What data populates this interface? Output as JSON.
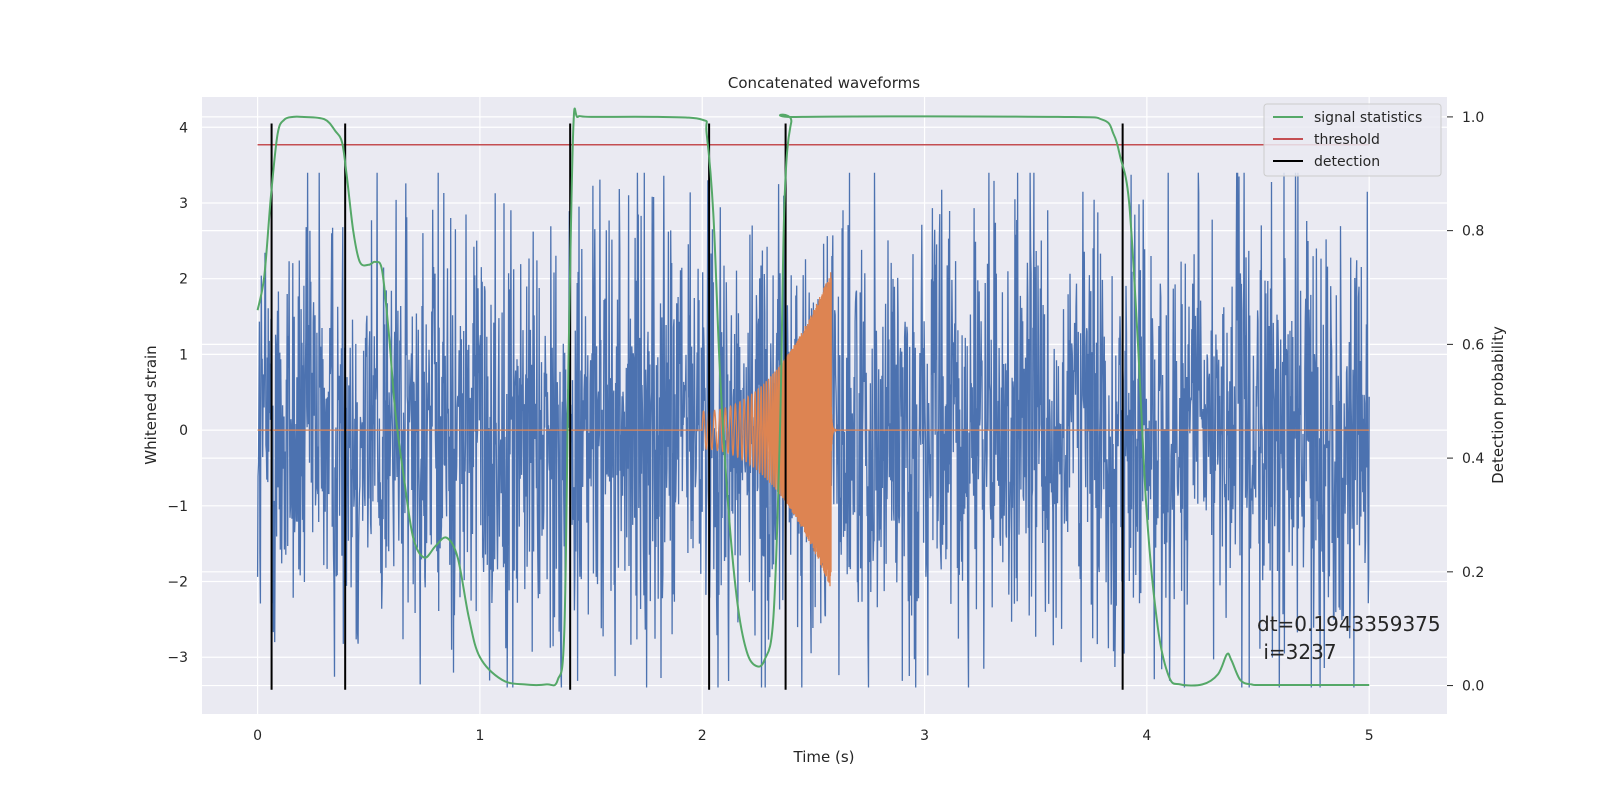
{
  "chart_data": {
    "type": "line",
    "title": "Concatenated waveforms",
    "xlabel": "Time (s)",
    "ylabel": "Whitened strain",
    "ylabel_right": "Detection probability",
    "xlim": [
      -0.25,
      5.35
    ],
    "ylim": [
      -3.75,
      4.4
    ],
    "ylim_right": [
      -0.05,
      1.035
    ],
    "x_ticks": [
      0,
      1,
      2,
      3,
      4,
      5
    ],
    "x_tick_labels": [
      "0",
      "1",
      "2",
      "3",
      "4",
      "5"
    ],
    "y_ticks": [
      -3,
      -2,
      -1,
      0,
      1,
      2,
      3,
      4
    ],
    "y_tick_labels": [
      "−3",
      "−2",
      "−1",
      "0",
      "1",
      "2",
      "3",
      "4"
    ],
    "y_right_ticks": [
      0.0,
      0.2,
      0.4,
      0.6,
      0.8,
      1.0
    ],
    "y_right_tick_labels": [
      "0.0",
      "0.2",
      "0.4",
      "0.6",
      "0.8",
      "1.0"
    ],
    "grid": true,
    "legend_position": "top-right",
    "series": [
      {
        "name": "signal statistics",
        "axis": "right",
        "color": "#55a868",
        "x": [
          0.0,
          0.03,
          0.06,
          0.09,
          0.12,
          0.16,
          0.2,
          0.3,
          0.35,
          0.38,
          0.4,
          0.43,
          0.46,
          0.5,
          0.53,
          0.56,
          0.59,
          0.62,
          0.66,
          0.7,
          0.75,
          0.8,
          0.85,
          0.9,
          0.95,
          1.0,
          1.1,
          1.2,
          1.3,
          1.35,
          1.38,
          1.4,
          1.42,
          1.44,
          1.5,
          1.8,
          2.0,
          2.02,
          2.05,
          2.08,
          2.12,
          2.16,
          2.2,
          2.24,
          2.28,
          2.32,
          2.35,
          2.37,
          2.4,
          2.45,
          3.6,
          3.8,
          3.85,
          3.88,
          3.92,
          3.96,
          4.0,
          4.05,
          4.1,
          4.15,
          4.25,
          4.32,
          4.36,
          4.38,
          4.42,
          4.47,
          4.55,
          5.0
        ],
        "y": [
          0.66,
          0.72,
          0.86,
          0.97,
          0.995,
          1.0,
          1.0,
          0.996,
          0.975,
          0.955,
          0.9,
          0.8,
          0.745,
          0.74,
          0.745,
          0.73,
          0.62,
          0.48,
          0.36,
          0.26,
          0.225,
          0.245,
          0.26,
          0.225,
          0.12,
          0.05,
          0.01,
          0.002,
          0.002,
          0.01,
          0.1,
          0.6,
          0.98,
          1.0,
          1.0,
          1.0,
          0.995,
          0.97,
          0.83,
          0.55,
          0.3,
          0.14,
          0.06,
          0.035,
          0.045,
          0.12,
          0.45,
          0.85,
          0.99,
          1.0,
          1.0,
          0.995,
          0.97,
          0.93,
          0.85,
          0.6,
          0.3,
          0.1,
          0.015,
          0.002,
          0.002,
          0.02,
          0.055,
          0.045,
          0.01,
          0.002,
          0.001,
          0.001
        ]
      },
      {
        "name": "threshold",
        "axis": "right",
        "color": "#c44e52",
        "x": [
          0.0,
          5.0
        ],
        "y": [
          0.951,
          0.951
        ]
      },
      {
        "name": "detection",
        "axis": "left",
        "color": "#000000",
        "vlines_x": [
          0.063,
          0.394,
          1.406,
          2.031,
          2.375,
          3.891
        ],
        "y_range": [
          -3.43,
          4.05
        ]
      },
      {
        "axis": "left",
        "color": "#4c72b0",
        "kind": "noise",
        "x_range": [
          0.0,
          5.0
        ],
        "typical_amplitude": 1.3,
        "peak_range": [
          -3.4,
          3.4
        ]
      },
      {
        "axis": "left",
        "color": "#dd8452",
        "kind": "chirp",
        "x_range": [
          2.0,
          2.58
        ],
        "amplitude_start": 0.25,
        "amplitude_peak": 2.1,
        "baseline": 0.0
      }
    ],
    "annotations": [
      "dt=0.1943359375",
      " i=3237"
    ]
  },
  "colors": {
    "axes_bg": "#eaeaf2",
    "grid": "#ffffff",
    "noise": "#4c72b0",
    "chirp": "#dd8452",
    "signal": "#55a868",
    "threshold": "#c44e52",
    "detection": "#000000"
  }
}
